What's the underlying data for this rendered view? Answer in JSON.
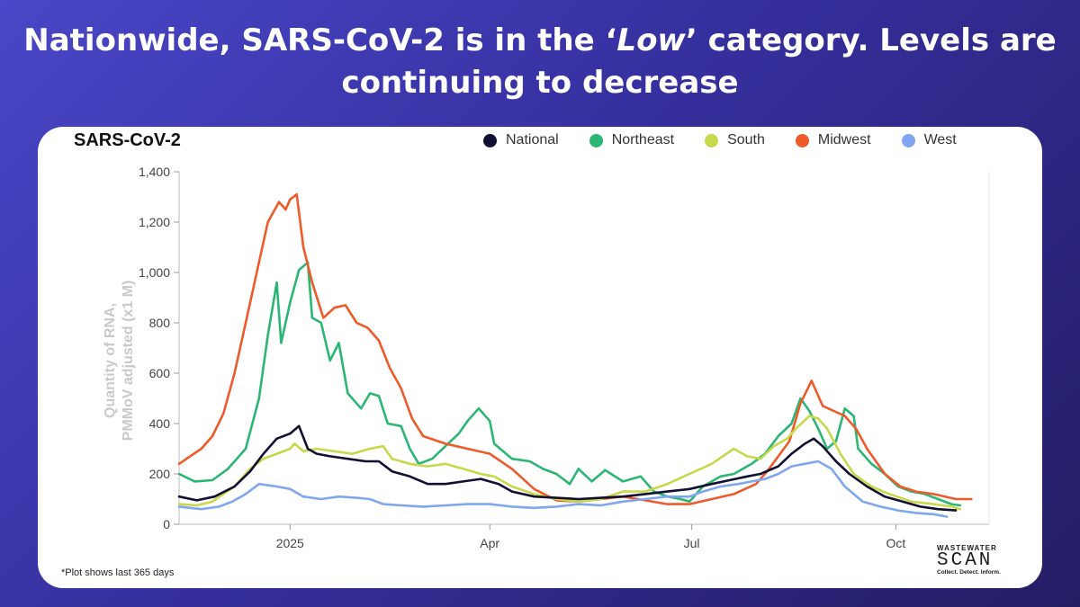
{
  "slide": {
    "headline_line1": "Nationwide, SARS-CoV-2 is in the ‘",
    "headline_emph": "Low",
    "headline_line1_end": "’ category. Levels are",
    "headline_line2": "continuing to decrease",
    "footnote": "*Plot shows last 365 days",
    "logo_line1": "WASTEWATER",
    "logo_line2": "SCAN",
    "logo_line3": "Collect. Detect. Inform."
  },
  "colors": {
    "National": "#121032",
    "Northeast": "#2bb673",
    "South": "#c7d84a",
    "Midwest": "#ee5a2a",
    "West": "#7fa6ee"
  },
  "chart_data": {
    "type": "line",
    "title": "SARS-CoV-2",
    "ylabel_line1": "Quantity of RNA,",
    "ylabel_line2": "PMMoV adjusted (x1 M)",
    "xlabel": "",
    "ylim": [
      0,
      1400
    ],
    "xlim_days": [
      0,
      365
    ],
    "yticks": [
      0,
      200,
      400,
      600,
      800,
      1000,
      1200,
      1400
    ],
    "ytick_labels": [
      "0",
      "200",
      "400",
      "600",
      "800",
      "1,000",
      "1,200",
      "1,400"
    ],
    "xticks": [
      {
        "day": 50,
        "label": "2025"
      },
      {
        "day": 140,
        "label": "Apr"
      },
      {
        "day": 231,
        "label": "Jul"
      },
      {
        "day": 323,
        "label": "Oct"
      }
    ],
    "legend": [
      "National",
      "Northeast",
      "South",
      "Midwest",
      "West"
    ],
    "series": [
      {
        "name": "Northeast",
        "points": [
          [
            0,
            200
          ],
          [
            7,
            170
          ],
          [
            15,
            175
          ],
          [
            22,
            220
          ],
          [
            30,
            300
          ],
          [
            36,
            500
          ],
          [
            40,
            750
          ],
          [
            44,
            960
          ],
          [
            46,
            720
          ],
          [
            50,
            880
          ],
          [
            54,
            1010
          ],
          [
            58,
            1040
          ],
          [
            60,
            820
          ],
          [
            64,
            800
          ],
          [
            68,
            650
          ],
          [
            72,
            720
          ],
          [
            76,
            520
          ],
          [
            82,
            460
          ],
          [
            86,
            520
          ],
          [
            90,
            510
          ],
          [
            94,
            400
          ],
          [
            100,
            390
          ],
          [
            104,
            300
          ],
          [
            108,
            240
          ],
          [
            114,
            260
          ],
          [
            120,
            310
          ],
          [
            126,
            360
          ],
          [
            130,
            410
          ],
          [
            135,
            460
          ],
          [
            140,
            410
          ],
          [
            142,
            320
          ],
          [
            150,
            260
          ],
          [
            158,
            250
          ],
          [
            164,
            220
          ],
          [
            170,
            200
          ],
          [
            176,
            160
          ],
          [
            180,
            220
          ],
          [
            186,
            170
          ],
          [
            192,
            215
          ],
          [
            200,
            170
          ],
          [
            208,
            190
          ],
          [
            214,
            130
          ],
          [
            220,
            110
          ],
          [
            226,
            100
          ],
          [
            230,
            90
          ],
          [
            236,
            150
          ],
          [
            244,
            190
          ],
          [
            250,
            200
          ],
          [
            258,
            240
          ],
          [
            264,
            280
          ],
          [
            270,
            350
          ],
          [
            276,
            400
          ],
          [
            280,
            500
          ],
          [
            284,
            450
          ],
          [
            288,
            380
          ],
          [
            292,
            300
          ],
          [
            296,
            330
          ],
          [
            300,
            460
          ],
          [
            304,
            430
          ],
          [
            306,
            300
          ],
          [
            312,
            240
          ],
          [
            318,
            200
          ],
          [
            324,
            150
          ],
          [
            330,
            130
          ],
          [
            336,
            120
          ],
          [
            342,
            100
          ],
          [
            348,
            80
          ],
          [
            352,
            75
          ]
        ]
      },
      {
        "name": "Midwest",
        "points": [
          [
            0,
            240
          ],
          [
            5,
            270
          ],
          [
            10,
            300
          ],
          [
            15,
            350
          ],
          [
            20,
            440
          ],
          [
            25,
            600
          ],
          [
            30,
            800
          ],
          [
            35,
            1000
          ],
          [
            40,
            1200
          ],
          [
            45,
            1280
          ],
          [
            48,
            1250
          ],
          [
            50,
            1290
          ],
          [
            53,
            1310
          ],
          [
            56,
            1100
          ],
          [
            60,
            960
          ],
          [
            65,
            820
          ],
          [
            70,
            860
          ],
          [
            75,
            870
          ],
          [
            80,
            800
          ],
          [
            85,
            780
          ],
          [
            90,
            730
          ],
          [
            95,
            620
          ],
          [
            100,
            540
          ],
          [
            105,
            420
          ],
          [
            110,
            350
          ],
          [
            120,
            320
          ],
          [
            130,
            300
          ],
          [
            140,
            280
          ],
          [
            150,
            220
          ],
          [
            160,
            140
          ],
          [
            170,
            95
          ],
          [
            180,
            90
          ],
          [
            190,
            100
          ],
          [
            200,
            110
          ],
          [
            210,
            95
          ],
          [
            220,
            80
          ],
          [
            230,
            80
          ],
          [
            240,
            100
          ],
          [
            250,
            120
          ],
          [
            260,
            160
          ],
          [
            265,
            210
          ],
          [
            270,
            270
          ],
          [
            275,
            330
          ],
          [
            280,
            480
          ],
          [
            285,
            570
          ],
          [
            290,
            470
          ],
          [
            295,
            450
          ],
          [
            300,
            430
          ],
          [
            305,
            380
          ],
          [
            310,
            300
          ],
          [
            318,
            200
          ],
          [
            325,
            150
          ],
          [
            332,
            130
          ],
          [
            340,
            120
          ],
          [
            350,
            100
          ],
          [
            357,
            100
          ]
        ]
      },
      {
        "name": "South",
        "points": [
          [
            0,
            80
          ],
          [
            8,
            75
          ],
          [
            15,
            90
          ],
          [
            25,
            150
          ],
          [
            32,
            220
          ],
          [
            38,
            260
          ],
          [
            44,
            280
          ],
          [
            50,
            300
          ],
          [
            52,
            320
          ],
          [
            56,
            290
          ],
          [
            62,
            300
          ],
          [
            70,
            290
          ],
          [
            78,
            280
          ],
          [
            86,
            300
          ],
          [
            92,
            310
          ],
          [
            96,
            260
          ],
          [
            104,
            240
          ],
          [
            112,
            230
          ],
          [
            120,
            240
          ],
          [
            128,
            220
          ],
          [
            136,
            200
          ],
          [
            142,
            190
          ],
          [
            150,
            150
          ],
          [
            160,
            120
          ],
          [
            170,
            100
          ],
          [
            180,
            90
          ],
          [
            190,
            100
          ],
          [
            200,
            130
          ],
          [
            210,
            130
          ],
          [
            220,
            160
          ],
          [
            230,
            200
          ],
          [
            240,
            240
          ],
          [
            250,
            300
          ],
          [
            256,
            270
          ],
          [
            262,
            260
          ],
          [
            268,
            310
          ],
          [
            274,
            340
          ],
          [
            278,
            380
          ],
          [
            284,
            430
          ],
          [
            288,
            420
          ],
          [
            292,
            380
          ],
          [
            298,
            280
          ],
          [
            304,
            200
          ],
          [
            312,
            150
          ],
          [
            320,
            120
          ],
          [
            330,
            90
          ],
          [
            340,
            80
          ],
          [
            348,
            70
          ],
          [
            352,
            60
          ]
        ]
      },
      {
        "name": "National",
        "points": [
          [
            0,
            110
          ],
          [
            8,
            95
          ],
          [
            16,
            110
          ],
          [
            25,
            150
          ],
          [
            32,
            210
          ],
          [
            38,
            280
          ],
          [
            44,
            340
          ],
          [
            50,
            360
          ],
          [
            54,
            390
          ],
          [
            58,
            300
          ],
          [
            62,
            280
          ],
          [
            68,
            270
          ],
          [
            76,
            260
          ],
          [
            84,
            250
          ],
          [
            90,
            250
          ],
          [
            96,
            210
          ],
          [
            104,
            190
          ],
          [
            112,
            160
          ],
          [
            120,
            160
          ],
          [
            128,
            170
          ],
          [
            136,
            180
          ],
          [
            144,
            160
          ],
          [
            150,
            130
          ],
          [
            160,
            110
          ],
          [
            170,
            105
          ],
          [
            180,
            100
          ],
          [
            190,
            105
          ],
          [
            200,
            110
          ],
          [
            210,
            120
          ],
          [
            220,
            130
          ],
          [
            230,
            140
          ],
          [
            240,
            160
          ],
          [
            248,
            175
          ],
          [
            256,
            190
          ],
          [
            262,
            200
          ],
          [
            270,
            230
          ],
          [
            276,
            280
          ],
          [
            282,
            320
          ],
          [
            286,
            340
          ],
          [
            290,
            310
          ],
          [
            296,
            250
          ],
          [
            302,
            200
          ],
          [
            310,
            150
          ],
          [
            318,
            110
          ],
          [
            326,
            90
          ],
          [
            334,
            70
          ],
          [
            342,
            60
          ],
          [
            350,
            55
          ]
        ]
      },
      {
        "name": "West",
        "points": [
          [
            0,
            70
          ],
          [
            10,
            60
          ],
          [
            18,
            70
          ],
          [
            24,
            90
          ],
          [
            30,
            120
          ],
          [
            36,
            160
          ],
          [
            44,
            150
          ],
          [
            50,
            140
          ],
          [
            56,
            110
          ],
          [
            64,
            100
          ],
          [
            72,
            110
          ],
          [
            80,
            105
          ],
          [
            86,
            100
          ],
          [
            92,
            80
          ],
          [
            100,
            75
          ],
          [
            110,
            70
          ],
          [
            120,
            75
          ],
          [
            130,
            80
          ],
          [
            140,
            80
          ],
          [
            150,
            70
          ],
          [
            160,
            65
          ],
          [
            170,
            70
          ],
          [
            180,
            80
          ],
          [
            190,
            75
          ],
          [
            200,
            90
          ],
          [
            210,
            100
          ],
          [
            220,
            110
          ],
          [
            230,
            110
          ],
          [
            236,
            130
          ],
          [
            244,
            150
          ],
          [
            252,
            160
          ],
          [
            258,
            170
          ],
          [
            264,
            180
          ],
          [
            270,
            200
          ],
          [
            276,
            230
          ],
          [
            282,
            240
          ],
          [
            288,
            250
          ],
          [
            294,
            220
          ],
          [
            300,
            150
          ],
          [
            308,
            90
          ],
          [
            316,
            70
          ],
          [
            324,
            55
          ],
          [
            332,
            45
          ],
          [
            340,
            40
          ],
          [
            346,
            30
          ]
        ]
      }
    ]
  }
}
